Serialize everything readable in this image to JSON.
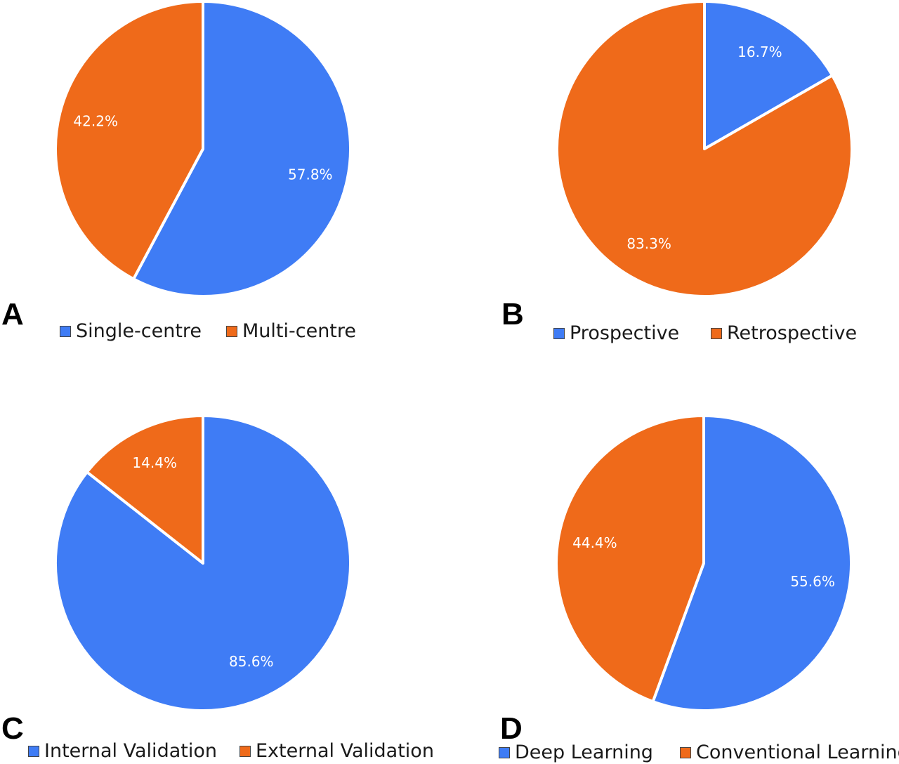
{
  "colors": {
    "blue": "#3f7cf5",
    "orange": "#ef6a1a"
  },
  "chart_data": [
    {
      "type": "pie",
      "panel": "A",
      "slices": [
        {
          "label": "Single-centre",
          "value": 57.8,
          "display": "57.8%",
          "color": "#3f7cf5"
        },
        {
          "label": "Multi-centre",
          "value": 42.2,
          "display": "42.2%",
          "color": "#ef6a1a"
        }
      ],
      "legend": [
        "Single-centre",
        "Multi-centre"
      ],
      "legend_position": "bottom"
    },
    {
      "type": "pie",
      "panel": "B",
      "slices": [
        {
          "label": "Prospective",
          "value": 16.7,
          "display": "16.7%",
          "color": "#3f7cf5"
        },
        {
          "label": "Retrospective",
          "value": 83.3,
          "display": "83.3%",
          "color": "#ef6a1a"
        }
      ],
      "legend": [
        "Prospective",
        "Retrospective"
      ],
      "legend_position": "bottom"
    },
    {
      "type": "pie",
      "panel": "C",
      "slices": [
        {
          "label": "Internal Validation",
          "value": 85.6,
          "display": "85.6%",
          "color": "#3f7cf5"
        },
        {
          "label": "External Validation",
          "value": 14.4,
          "display": "14.4%",
          "color": "#ef6a1a"
        }
      ],
      "legend": [
        "Internal Validation",
        "External Validation"
      ],
      "legend_position": "bottom"
    },
    {
      "type": "pie",
      "panel": "D",
      "slices": [
        {
          "label": "Deep Learning",
          "value": 55.6,
          "display": "55.6%",
          "color": "#3f7cf5"
        },
        {
          "label": "Conventional Learning",
          "value": 44.4,
          "display": "44.4%",
          "color": "#ef6a1a"
        }
      ],
      "legend": [
        "Deep Learning",
        "Conventional Learning"
      ],
      "legend_position": "bottom"
    }
  ]
}
